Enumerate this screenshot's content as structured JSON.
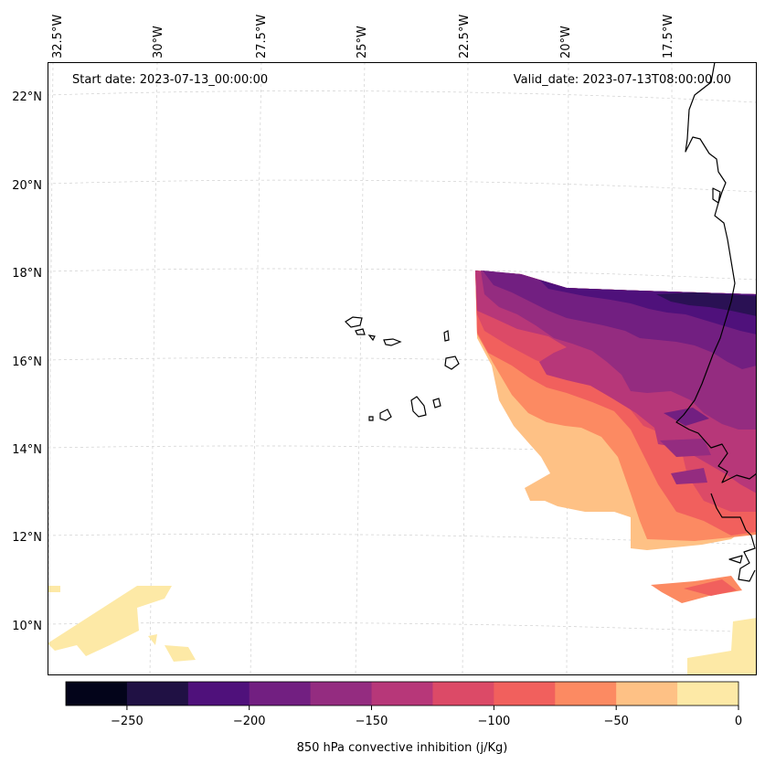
{
  "map": {
    "start_label": "Start date: 2023-07-13_00:00:00",
    "valid_label": "Valid_date: 2023-07-13T08:00:00.00",
    "lon_labels": [
      "32.5°W",
      "30°W",
      "27.5°W",
      "25°W",
      "22.5°W",
      "20°W",
      "17.5°W"
    ],
    "lat_labels": [
      "22°N",
      "20°N",
      "18°N",
      "16°N",
      "14°N",
      "12°N",
      "10°N"
    ],
    "field_colors": {
      "lv1": "#2a1154",
      "lv2": "#4f117b",
      "lv3": "#721f81",
      "lv4": "#942c80",
      "lv5": "#b73779",
      "lv6": "#dc4a67",
      "lv7": "#f1605d",
      "lv8": "#fc8a62",
      "lv9": "#fec185",
      "lv10": "#fde9a6"
    }
  },
  "colorbar": {
    "label": "850 hPa convective inhibition (j/Kg)",
    "ticks": [
      "−250",
      "−200",
      "−150",
      "−100",
      "−50",
      "0"
    ],
    "bins": [
      {
        "min": -275,
        "max": -250,
        "color": "#03041a"
      },
      {
        "min": -250,
        "max": -225,
        "color": "#201144"
      },
      {
        "min": -225,
        "max": -200,
        "color": "#4f117b"
      },
      {
        "min": -200,
        "max": -175,
        "color": "#721f81"
      },
      {
        "min": -175,
        "max": -150,
        "color": "#942c80"
      },
      {
        "min": -150,
        "max": -125,
        "color": "#b73779"
      },
      {
        "min": -125,
        "max": -100,
        "color": "#dc4a67"
      },
      {
        "min": -100,
        "max": -75,
        "color": "#f1605d"
      },
      {
        "min": -75,
        "max": -50,
        "color": "#fc8a62"
      },
      {
        "min": -50,
        "max": -25,
        "color": "#fec185"
      },
      {
        "min": -25,
        "max": 0,
        "color": "#fde9a6"
      }
    ]
  }
}
